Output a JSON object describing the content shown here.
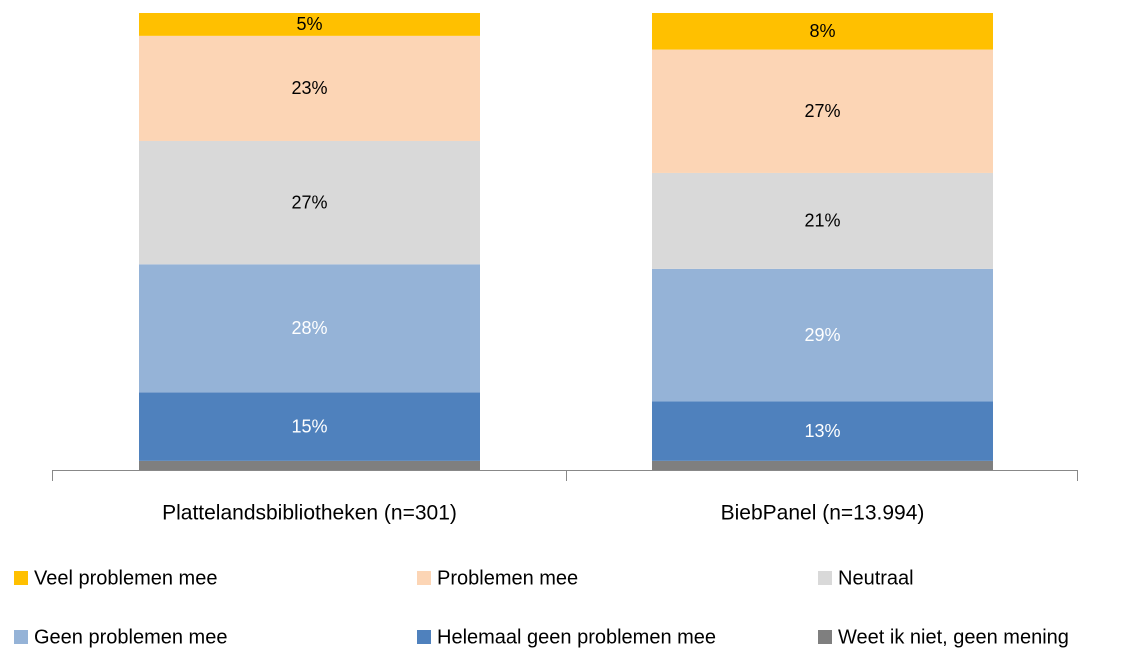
{
  "chart_data": {
    "type": "stacked_bar",
    "categories": [
      "Plattelandsbibliotheken (n=301)",
      "BiebPanel (n=13.994)"
    ],
    "series": [
      {
        "name": "Weet ik niet, geen mening",
        "color": "#7f7f7f",
        "values": [
          2,
          2
        ]
      },
      {
        "name": "Helemaal geen problemen mee",
        "color": "#4f81bd",
        "label_color": "#ffffff",
        "values": [
          15,
          13
        ],
        "value_labels": [
          "15%",
          "13%"
        ]
      },
      {
        "name": "Geen problemen mee",
        "color": "#95b3d7",
        "label_color": "#ffffff",
        "values": [
          28,
          29
        ],
        "value_labels": [
          "28%",
          "29%"
        ]
      },
      {
        "name": "Neutraal",
        "color": "#d9d9d9",
        "label_color": "#000000",
        "values": [
          27,
          21
        ],
        "value_labels": [
          "27%",
          "21%"
        ]
      },
      {
        "name": "Problemen mee",
        "color": "#fcd5b5",
        "label_color": "#000000",
        "values": [
          23,
          27
        ],
        "value_labels": [
          "23%",
          "27%"
        ]
      },
      {
        "name": "Veel problemen mee",
        "color": "#ffc000",
        "label_color": "#000000",
        "values": [
          5,
          8
        ],
        "value_labels": [
          "5%",
          "8%"
        ]
      }
    ],
    "legend_order": [
      5,
      4,
      3,
      2,
      1,
      0
    ]
  }
}
